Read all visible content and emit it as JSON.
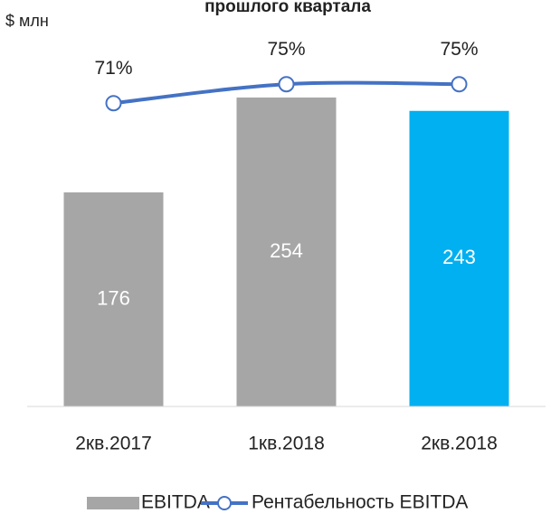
{
  "chart_data": {
    "type": "bar",
    "title": "прошлого квартала",
    "y_label": "$ млн",
    "categories": [
      "2кв.2017",
      "1кв.2018",
      "2кв.2018"
    ],
    "series": [
      {
        "name": "EBITDA",
        "type": "bar",
        "color": "#a6a6a6",
        "colors": [
          "#a6a6a6",
          "#a6a6a6",
          "#00b0f0"
        ],
        "values": [
          176,
          254,
          243
        ]
      },
      {
        "name": "Рентабельность EBITDA",
        "type": "line",
        "axis": "y2",
        "color": "#4472c4",
        "values": [
          71,
          75,
          75
        ],
        "value_labels": [
          "71%",
          "75%",
          "75%"
        ]
      }
    ],
    "ylim": [
      0,
      300
    ],
    "y2lim": [
      7,
      84
    ],
    "legend": "bottom"
  }
}
